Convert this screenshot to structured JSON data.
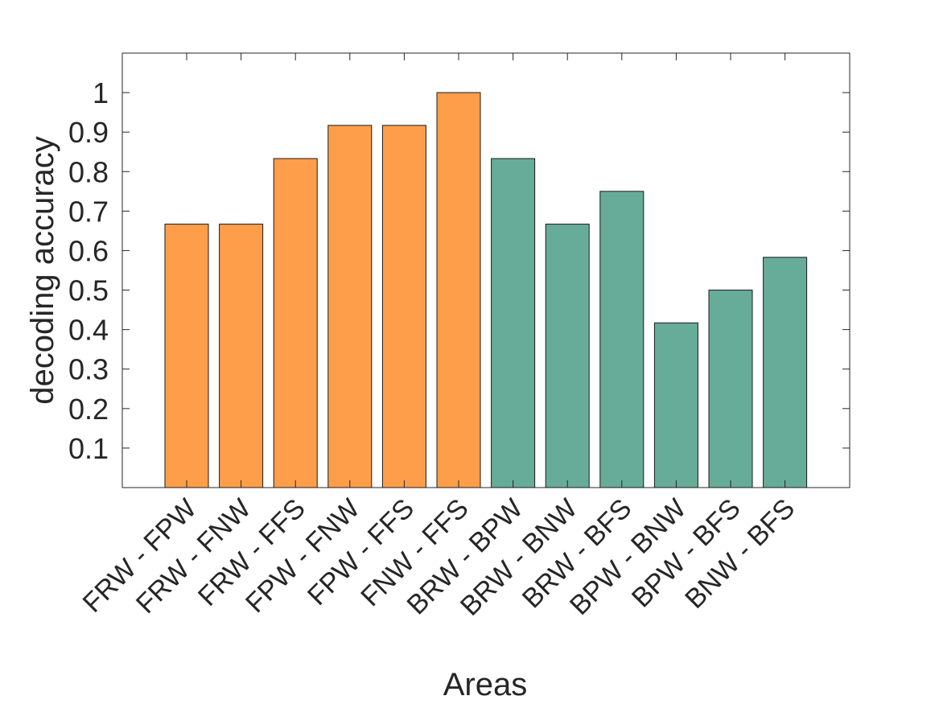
{
  "chart_data": {
    "type": "bar",
    "xlabel": "Areas",
    "ylabel": "decoding accuracy",
    "ylim": [
      0,
      1.1
    ],
    "yticks": [
      0.1,
      0.2,
      0.3,
      0.4,
      0.5,
      0.6,
      0.7,
      0.8,
      0.9,
      1
    ],
    "ytick_labels": [
      "0.1",
      "0.2",
      "0.3",
      "0.4",
      "0.5",
      "0.6",
      "0.7",
      "0.8",
      "0.9",
      "1"
    ],
    "categories": [
      "FRW - FPW",
      "FRW - FNW",
      "FRW - FFS",
      "FPW - FNW",
      "FPW - FFS",
      "FNW - FFS",
      "BRW - BPW",
      "BRW - BNW",
      "BRW - BFS",
      "BPW - BNW",
      "BPW - BFS",
      "BNW - BFS"
    ],
    "values": [
      0.667,
      0.667,
      0.833,
      0.917,
      0.917,
      1.0,
      0.833,
      0.667,
      0.75,
      0.417,
      0.5,
      0.583
    ],
    "bar_colors": [
      "#FF9E4A",
      "#FF9E4A",
      "#FF9E4A",
      "#FF9E4A",
      "#FF9E4A",
      "#FF9E4A",
      "#67AC98",
      "#67AC98",
      "#67AC98",
      "#67AC98",
      "#67AC98",
      "#67AC98"
    ],
    "grid": false,
    "box": true
  }
}
